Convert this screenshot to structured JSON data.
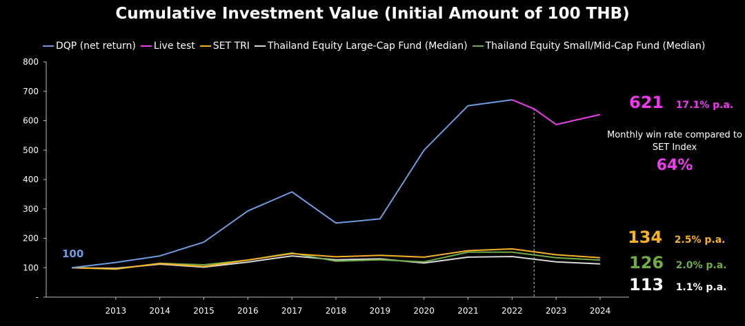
{
  "chart_data": {
    "type": "line",
    "title": "Cumulative Investment Value (Initial Amount of 100 THB)",
    "x": [
      "2012",
      "2013",
      "2014",
      "2015",
      "2016",
      "2017",
      "2018",
      "2019",
      "2020",
      "2021",
      "2022",
      "2023",
      "2024"
    ],
    "x_tick_labels": [
      "2013",
      "2014",
      "2015",
      "2016",
      "2017",
      "2018",
      "2019",
      "2020",
      "2021",
      "2022",
      "2023",
      "2024"
    ],
    "y_tick_labels": [
      "-",
      "100",
      "200",
      "300",
      "400",
      "500",
      "600",
      "700",
      "800"
    ],
    "ylim": [
      0,
      800
    ],
    "grid": false,
    "legend_position": "top",
    "series": [
      {
        "name": "DQP (net return)",
        "color": "#6f9be0",
        "values": [
          100,
          118,
          140,
          187,
          293,
          358,
          252,
          266,
          500,
          651,
          671,
          null,
          null
        ]
      },
      {
        "name": "Live test",
        "color": "#ee3bee",
        "x_values": [
          2022.0,
          2022.5,
          2023,
          2024
        ],
        "values": [
          671,
          640,
          587,
          621
        ]
      },
      {
        "name": "SET TRI",
        "color": "#f6b325",
        "values": [
          100,
          96,
          114,
          104,
          126,
          148,
          137,
          142,
          136,
          158,
          164,
          144,
          134
        ]
      },
      {
        "name": "Thailand Equity Large-Cap Fund (Median)",
        "color": "#d9d9d9",
        "values": [
          100,
          98,
          112,
          102,
          119,
          140,
          127,
          130,
          116,
          136,
          138,
          120,
          113
        ]
      },
      {
        "name": "Thailand Equity Small/Mid-Cap Fund (Median)",
        "color": "#70ad47",
        "values": [
          100,
          95,
          115,
          110,
          126,
          150,
          122,
          127,
          120,
          153,
          153,
          134,
          126
        ]
      }
    ],
    "live_test_start_marker": 2022.5,
    "annotations": {
      "start_value": {
        "text": "100",
        "color": "#6f9be0"
      },
      "dqp_end": {
        "value": "621",
        "rate": "17.1% p.a.",
        "color": "#ee3bee"
      },
      "win_rate_note": "Monthly win rate compared to SET Index",
      "win_rate_value": "64%",
      "set_end": {
        "value": "134",
        "rate": "2.5% p.a.",
        "color": "#f6b325"
      },
      "small_mid_end": {
        "value": "126",
        "rate": "2.0% p.a.",
        "color": "#70ad47"
      },
      "large_end": {
        "value": "113",
        "rate": "1.1% p.a.",
        "color": "#ffffff"
      }
    }
  }
}
